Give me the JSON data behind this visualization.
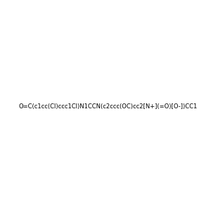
{
  "smiles": "O=C(c1cc(Cl)ccc1Cl)N1CCN(c2ccc(OC)cc2[N+](=O)[O-])CC1",
  "image_size": 300,
  "background_color": "#e8e8e8",
  "atom_colors": {
    "N": "blue",
    "O": "red",
    "Cl": "green"
  },
  "title": "",
  "dpi": 100
}
